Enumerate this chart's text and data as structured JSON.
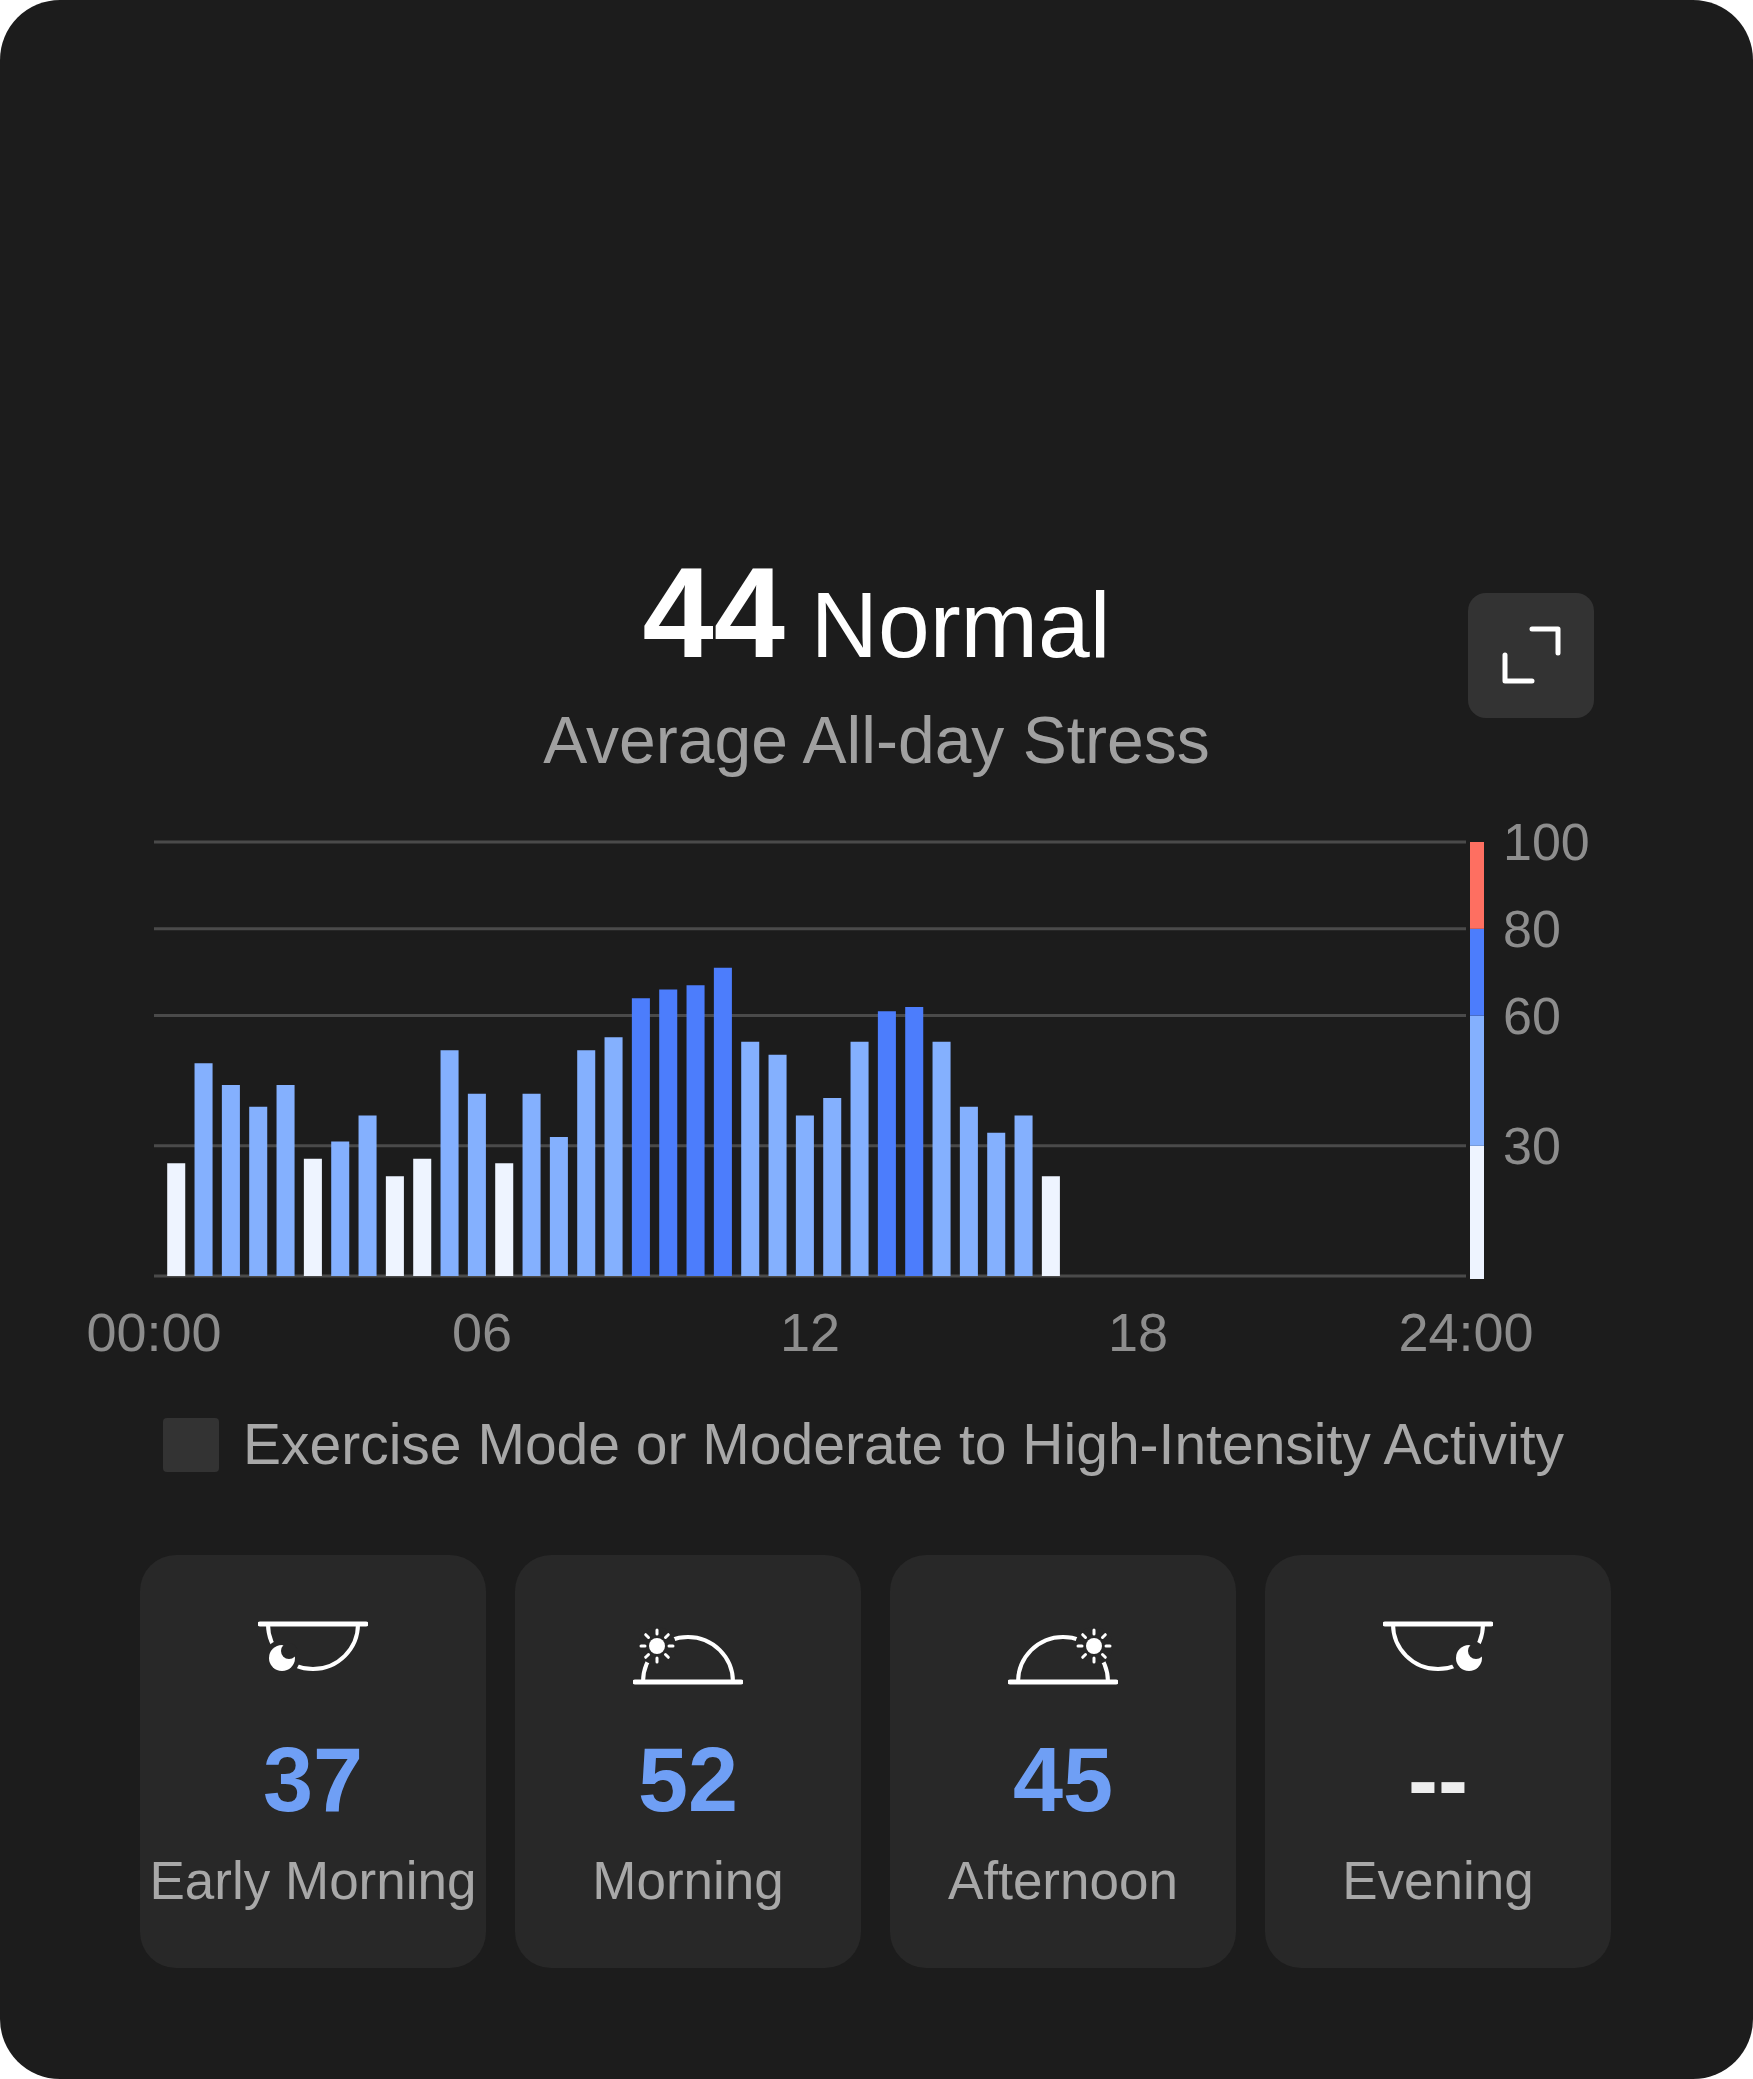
{
  "chart_data": [
    {
      "type": "bar",
      "title": "44 Normal",
      "subtitle": "Average All-day Stress",
      "x": [
        0.4,
        0.9,
        1.4,
        1.9,
        2.4,
        2.9,
        3.4,
        3.9,
        4.4,
        4.9,
        5.4,
        5.9,
        6.4,
        6.9,
        7.4,
        7.9,
        8.4,
        8.9,
        9.4,
        9.9,
        10.4,
        10.9,
        11.4,
        11.9,
        12.4,
        12.9,
        13.4,
        13.9,
        14.4,
        14.9,
        15.4,
        15.9,
        16.4
      ],
      "xlim": [
        0,
        24
      ],
      "xticks": [
        {
          "value": 0,
          "label": "00:00"
        },
        {
          "value": 6,
          "label": "06"
        },
        12,
        18,
        {
          "value": 24,
          "label": "24:00"
        }
      ],
      "ylim": [
        0,
        100
      ],
      "yticks": [
        {
          "value": 0,
          "label": null
        },
        30,
        60,
        80,
        100
      ],
      "grid": "y",
      "legend": "bottom",
      "series": [
        {
          "type": "bar",
          "values": [
            26,
            49,
            44,
            39,
            44,
            27,
            31,
            37,
            23,
            27,
            52,
            42,
            26,
            42,
            32,
            52,
            55,
            64,
            66,
            67,
            71,
            54,
            51,
            37,
            41,
            54,
            61,
            62,
            54,
            39,
            33,
            37,
            23
          ],
          "colors": [
            "#eef4ff",
            "#84b0fe",
            "#84b0fe",
            "#84b0fe",
            "#84b0fe",
            "#eef4ff",
            "#84b0fe",
            "#84b0fe",
            "#eef4ff",
            "#eef4ff",
            "#84b0fe",
            "#84b0fe",
            "#eef4ff",
            "#84b0fe",
            "#84b0fe",
            "#84b0fe",
            "#84b0fe",
            "#4c7dfc",
            "#4c7dfc",
            "#4c7dfc",
            "#4c7dfc",
            "#84b0fe",
            "#84b0fe",
            "#84b0fe",
            "#84b0fe",
            "#84b0fe",
            "#4c7dfc",
            "#4c7dfc",
            "#84b0fe",
            "#84b0fe",
            "#84b0fe",
            "#84b0fe",
            "#eef4ff"
          ]
        },
        {
          "type": "bar",
          "name": "Exercise Mode or Moderate to High-Intensity Activity",
          "color": "#333333",
          "values": [
            null,
            null,
            null,
            null,
            null,
            null,
            null,
            null,
            null,
            null,
            null,
            null,
            null,
            null,
            null,
            null,
            null,
            null,
            null,
            null,
            null,
            null,
            null,
            null,
            null,
            null,
            null,
            null,
            null,
            null,
            null,
            null,
            null
          ]
        }
      ]
    },
    {
      "type": "other",
      "categories": [
        "Early Morning",
        "Morning",
        "Afternoon",
        "Evening"
      ],
      "value_labels": [
        "37",
        "52",
        "45",
        "--"
      ],
      "colors": [
        "#6f9ff5",
        "#6f9ff5",
        "#6f9ff5",
        "#eeeeee"
      ]
    }
  ]
}
